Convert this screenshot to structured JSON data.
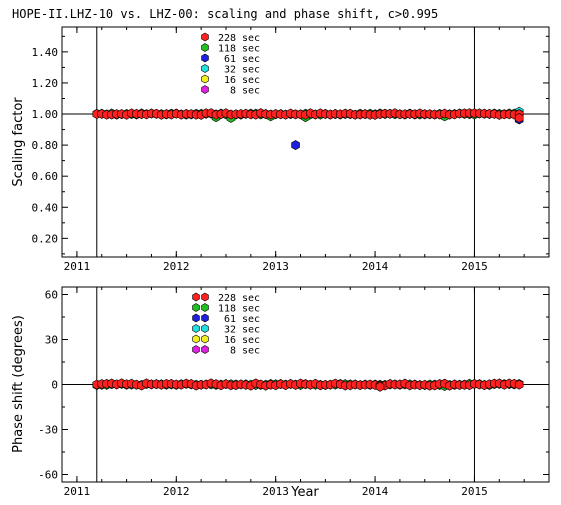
{
  "figure_title": "HOPE-II.LHZ-10 vs. LHZ-00: scaling and phase shift, c>0.995",
  "xlabel": "Year",
  "x_ticks": [
    "2011",
    "2012",
    "2013",
    "2014",
    "2015"
  ],
  "legend": [
    {
      "label": "228 sec",
      "color": "#ff2020"
    },
    {
      "label": "118 sec",
      "color": "#20c020"
    },
    {
      "label": "61 sec",
      "color": "#2020e0"
    },
    {
      "label": "32 sec",
      "color": "#20e0e0"
    },
    {
      "label": "16 sec",
      "color": "#f0f020"
    },
    {
      "label": "8 sec",
      "color": "#e020e0"
    }
  ],
  "vertical_markers": [
    2011.2,
    2015.0
  ],
  "chart_data": [
    {
      "type": "scatter",
      "panel": "top",
      "ylabel": "Scaling factor",
      "xlim": [
        2010.85,
        2015.75
      ],
      "ylim": [
        0.08,
        1.56
      ],
      "y_ticks": [
        "0.20",
        "0.40",
        "0.60",
        "0.80",
        "1.00",
        "1.20",
        "1.40"
      ],
      "reference_line": 1.0,
      "start": 2011.2,
      "end": 2015.45,
      "step": 0.05,
      "base_value": 1.0,
      "series": [
        {
          "name": "228 sec",
          "color": "#ff2020",
          "noise": 0.006,
          "points": [
            [
              2015.45,
              0.975
            ]
          ]
        },
        {
          "name": "118 sec",
          "color": "#20c020",
          "noise": 0.004,
          "points": [
            [
              2012.4,
              0.98
            ],
            [
              2012.55,
              0.975
            ],
            [
              2012.95,
              0.985
            ],
            [
              2013.3,
              0.98
            ],
            [
              2014.1,
              1.0
            ],
            [
              2014.7,
              0.985
            ]
          ]
        },
        {
          "name": "61 sec",
          "color": "#2020e0",
          "noise": 0,
          "points": [
            [
              2013.2,
              0.8
            ],
            [
              2015.45,
              0.965
            ]
          ]
        },
        {
          "name": "32 sec",
          "color": "#20e0e0",
          "noise": 0,
          "points": [
            [
              2015.45,
              1.015
            ]
          ]
        },
        {
          "name": "16 sec",
          "color": "#f0f020",
          "noise": 0,
          "points": []
        },
        {
          "name": "8 sec",
          "color": "#e020e0",
          "noise": 0,
          "points": []
        }
      ]
    },
    {
      "type": "scatter",
      "panel": "bottom",
      "ylabel": "Phase shift (degrees)",
      "xlim": [
        2010.85,
        2015.75
      ],
      "ylim": [
        -65,
        65
      ],
      "y_ticks": [
        "-60",
        "-30",
        "0",
        "30",
        "60"
      ],
      "reference_line": 0,
      "start": 2011.2,
      "end": 2015.45,
      "step": 0.05,
      "base_value": 0,
      "series": [
        {
          "name": "228 sec",
          "color": "#ff2020",
          "noise": 0.8,
          "points": [
            [
              2014.05,
              -1.5
            ]
          ]
        },
        {
          "name": "118 sec",
          "color": "#20c020",
          "noise": 0.4,
          "points": [
            [
              2014.7,
              -1.0
            ],
            [
              2014.95,
              0.5
            ]
          ]
        },
        {
          "name": "61 sec",
          "color": "#2020e0",
          "noise": 0,
          "points": []
        },
        {
          "name": "32 sec",
          "color": "#20e0e0",
          "noise": 0,
          "points": []
        },
        {
          "name": "16 sec",
          "color": "#f0f020",
          "noise": 0,
          "points": []
        },
        {
          "name": "8 sec",
          "color": "#e020e0",
          "noise": 0,
          "points": []
        }
      ]
    }
  ]
}
